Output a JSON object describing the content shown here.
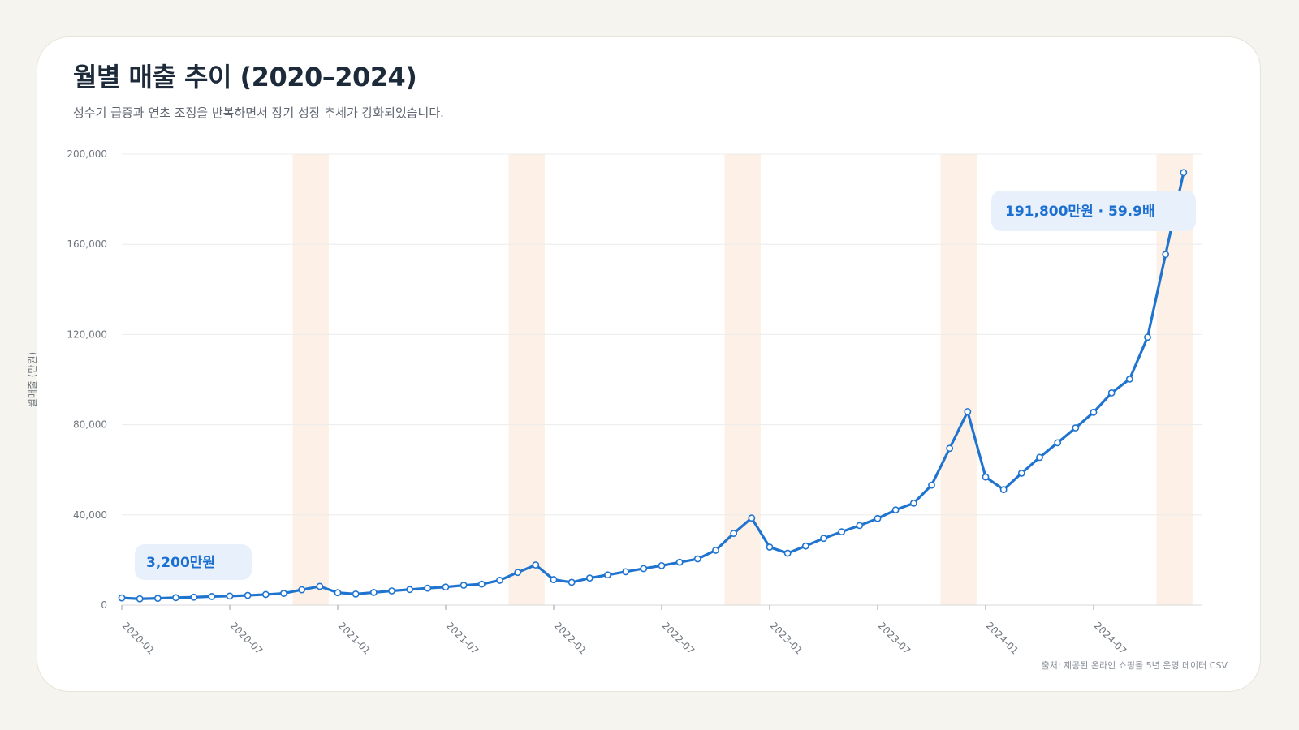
{
  "title": "월별 매출 추이 (2020–2024)",
  "subtitle": "성수기 급증과 연초 조정을 반복하면서 장기 성장 추세가 강화되었습니다.",
  "source": "출처: 제공된 온라인 쇼핑몰 5년 운영 데이터 CSV",
  "colors": {
    "line": "#1f74d0",
    "highlight_band": "#fdf0e6",
    "grid": "#ececec",
    "annotation_bg": "#e8f1fb",
    "annotation_text": "#1b6fd1"
  },
  "chart_data": {
    "type": "line",
    "ylabel": "월매출 (만원)",
    "ylim": [
      0,
      200000
    ],
    "yticks": [
      0,
      40000,
      80000,
      120000,
      160000,
      200000
    ],
    "ytick_labels": [
      "0",
      "40,000",
      "80,000",
      "120,000",
      "160,000",
      "200,000"
    ],
    "xtick_labels": [
      "2020-01",
      "2020-07",
      "2021-01",
      "2021-07",
      "2022-01",
      "2022-07",
      "2023-01",
      "2023-07",
      "2024-01",
      "2024-07"
    ],
    "xtick_months": [
      "2020-01",
      "2020-07",
      "2021-01",
      "2021-07",
      "2022-01",
      "2022-07",
      "2023-01",
      "2023-07",
      "2024-01",
      "2024-07"
    ],
    "grid": "horizontal",
    "x": [
      "2020-01",
      "2020-02",
      "2020-03",
      "2020-04",
      "2020-05",
      "2020-06",
      "2020-07",
      "2020-08",
      "2020-09",
      "2020-10",
      "2020-11",
      "2020-12",
      "2021-01",
      "2021-02",
      "2021-03",
      "2021-04",
      "2021-05",
      "2021-06",
      "2021-07",
      "2021-08",
      "2021-09",
      "2021-10",
      "2021-11",
      "2021-12",
      "2022-01",
      "2022-02",
      "2022-03",
      "2022-04",
      "2022-05",
      "2022-06",
      "2022-07",
      "2022-08",
      "2022-09",
      "2022-10",
      "2022-11",
      "2022-12",
      "2023-01",
      "2023-02",
      "2023-03",
      "2023-04",
      "2023-05",
      "2023-06",
      "2023-07",
      "2023-08",
      "2023-09",
      "2023-10",
      "2023-11",
      "2023-12",
      "2024-01",
      "2024-02",
      "2024-03",
      "2024-04",
      "2024-05",
      "2024-06",
      "2024-07",
      "2024-08",
      "2024-09",
      "2024-10",
      "2024-11",
      "2024-12"
    ],
    "series": [
      {
        "values": [
          3200,
          2800,
          3000,
          3300,
          3500,
          3800,
          4000,
          4300,
          4700,
          5200,
          6800,
          8300,
          5500,
          4900,
          5600,
          6300,
          6900,
          7500,
          8000,
          8800,
          9300,
          11000,
          14500,
          17800,
          11300,
          10100,
          12000,
          13400,
          14800,
          16200,
          17500,
          19000,
          20500,
          24300,
          31800,
          38600,
          25700,
          23000,
          26200,
          29600,
          32500,
          35300,
          38400,
          42200,
          45200,
          53200,
          69500,
          85800,
          56800,
          51200,
          58500,
          65500,
          72000,
          78600,
          85500,
          94100,
          100200,
          118800,
          155500,
          191800
        ]
      }
    ],
    "highlight_months": [
      "2020-11",
      "2020-12",
      "2021-11",
      "2021-12",
      "2022-11",
      "2022-12",
      "2023-11",
      "2023-12",
      "2024-11",
      "2024-12"
    ],
    "annotations": [
      {
        "month": "2020-01",
        "text": "3,200만원"
      },
      {
        "month": "2024-12",
        "text": "191,800만원 · 59.9배"
      }
    ]
  }
}
